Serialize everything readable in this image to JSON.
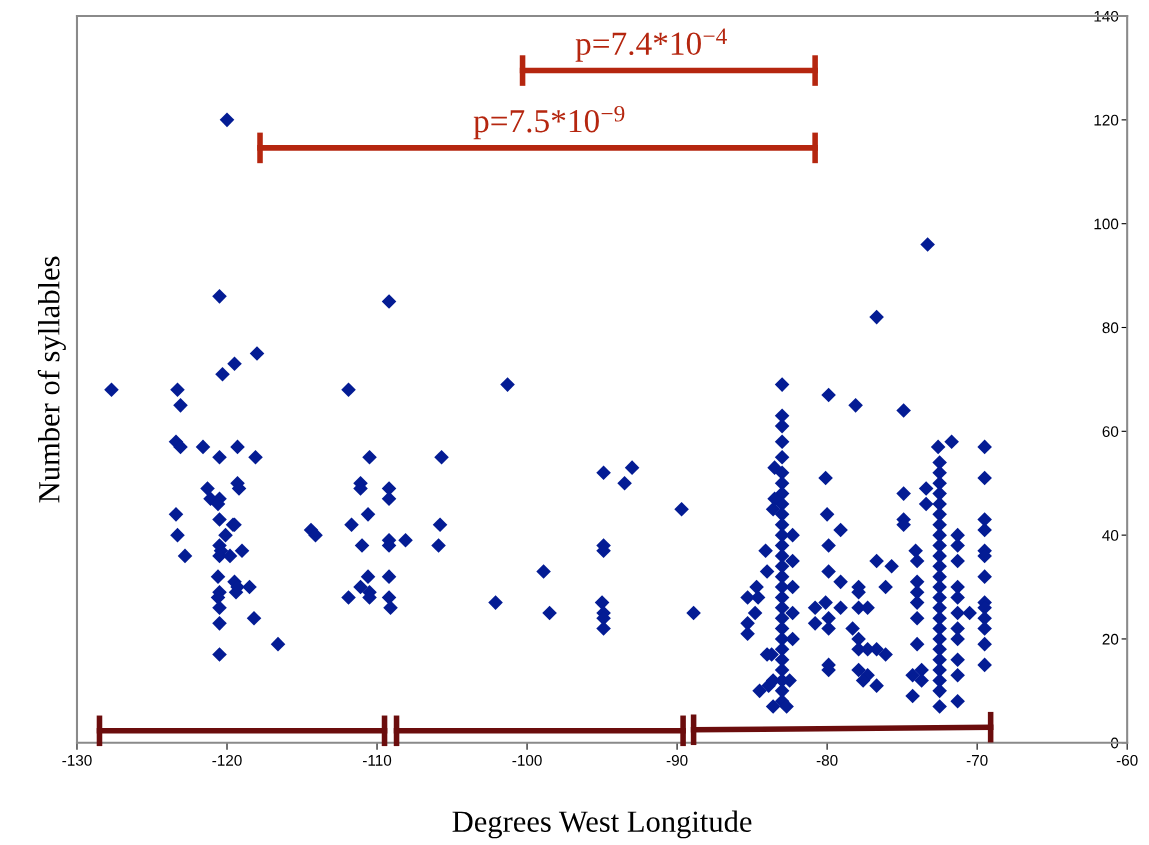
{
  "chart_data": {
    "type": "scatter",
    "xlabel": "Degrees West Longitude",
    "ylabel": "Number of syllables",
    "xlim": [
      -130,
      -60
    ],
    "xticks": [
      -130,
      -120,
      -110,
      -100,
      -90,
      -80,
      -70,
      -60
    ],
    "ylim": [
      0,
      140
    ],
    "yticks": [
      0,
      20,
      40,
      60,
      80,
      100,
      120,
      140
    ],
    "grid": false,
    "marker": "diamond",
    "annotations": [
      {
        "text": "p=7.4*10$^{−4}$",
        "x": -91.7,
        "y": 129.5
      },
      {
        "text": "p=7.5*10$^{−9}$",
        "x": -98.5,
        "y": 114.6
      }
    ],
    "series": [
      {
        "type": "line",
        "marker": "none",
        "color": "#b5260f",
        "x": [
          -100.3,
          -80.8
        ],
        "values": [
          129.5,
          129.5
        ]
      },
      {
        "type": "line",
        "marker": "none",
        "color": "#b5260f",
        "x": [
          -117.8,
          -80.8
        ],
        "values": [
          114.6,
          114.6
        ]
      },
      {
        "type": "line",
        "marker": "none",
        "color": "#6b0d0d",
        "x": [
          -128.5,
          -109.5
        ],
        "values": [
          2.3,
          2.3
        ]
      },
      {
        "type": "line",
        "marker": "none",
        "color": "#6b0d0d",
        "x": [
          -108.7,
          -89.6
        ],
        "values": [
          2.3,
          2.3
        ]
      },
      {
        "type": "line",
        "marker": "none",
        "color": "#6b0d0d",
        "x": [
          -88.9,
          -69.1
        ],
        "values": [
          2.5,
          3.0
        ]
      },
      {
        "color": "#041c94",
        "x": [
          -127.7,
          -123.3,
          -123.1,
          -123.4,
          -123.1,
          -121.6,
          -123.4,
          -123.3,
          -122.8,
          -121.3,
          -121.1,
          -120.5,
          -120.5,
          -120.5,
          -120.6,
          -120.5,
          -120.4,
          -120.5,
          -120.6,
          -120.5,
          -120.6,
          -120.5,
          -120.5,
          -120.5,
          -120.5,
          -120.3,
          -120.0,
          -119.5,
          -118.0,
          -118.1,
          -119.3,
          -119.3,
          -119.2,
          -119.6,
          -119.5,
          -119.0,
          -119.5,
          -119.3,
          -118.5,
          -119.4,
          -118.2,
          -116.6,
          -120.1,
          -119.8,
          -114.4,
          -114.1,
          -111.9,
          -111.7,
          -111.9,
          -111.1,
          -111.1,
          -110.5,
          -110.6,
          -111.0,
          -111.1,
          -110.6,
          -110.5,
          -110.5,
          -109.2,
          -109.2,
          -109.2,
          -109.2,
          -109.2,
          -109.2,
          -109.2,
          -109.1,
          -108.1,
          -105.7,
          -105.8,
          -105.9,
          -101.3,
          -102.1,
          -98.9,
          -98.5,
          -94.9,
          -94.9,
          -94.9,
          -95.0,
          -94.9,
          -94.9,
          -94.9,
          -93.0,
          -93.5,
          -89.7,
          -88.9,
          -83.0,
          -83.0,
          -83.0,
          -83.0,
          -83.0,
          -83.0,
          -83.0,
          -83.0,
          -83.0,
          -83.0,
          -83.0,
          -83.0,
          -83.0,
          -83.0,
          -83.0,
          -83.0,
          -83.0,
          -83.0,
          -83.0,
          -83.0,
          -83.0,
          -83.0,
          -83.0,
          -83.0,
          -83.0,
          -83.0,
          -83.0,
          -83.0,
          -83.5,
          -83.5,
          -83.6,
          -84.1,
          -84.7,
          -84.6,
          -84.8,
          -85.3,
          -85.3,
          -85.3,
          -84.0,
          -84.0,
          -83.9,
          -83.7,
          -83.6,
          -83.6,
          -82.7,
          -82.5,
          -84.5,
          -82.3,
          -82.3,
          -82.3,
          -82.3,
          -82.3,
          -79.9,
          -80.1,
          -80.0,
          -79.9,
          -79.9,
          -80.1,
          -80.8,
          -80.8,
          -79.9,
          -79.9,
          -79.9,
          -79.9,
          -79.1,
          -79.1,
          -79.1,
          -78.1,
          -77.9,
          -77.9,
          -77.9,
          -77.3,
          -78.3,
          -77.9,
          -77.9,
          -77.3,
          -76.7,
          -76.1,
          -77.9,
          -77.3,
          -76.7,
          -77.6,
          -76.7,
          -76.1,
          -75.7,
          -74.9,
          -74.9,
          -74.9,
          -74.9,
          -74.1,
          -74.0,
          -74.0,
          -74.0,
          -74.0,
          -74.0,
          -74.0,
          -74.3,
          -74.3,
          -73.7,
          -73.7,
          -73.4,
          -73.4,
          -73.3,
          -72.6,
          -72.5,
          -72.5,
          -72.5,
          -72.5,
          -72.5,
          -72.5,
          -72.5,
          -72.5,
          -72.5,
          -72.5,
          -72.5,
          -72.5,
          -72.5,
          -72.5,
          -72.5,
          -72.5,
          -72.5,
          -72.5,
          -72.5,
          -72.5,
          -72.5,
          -72.5,
          -72.5,
          -72.5,
          -71.7,
          -71.3,
          -71.3,
          -71.3,
          -71.3,
          -71.3,
          -71.3,
          -71.3,
          -71.3,
          -71.3,
          -71.3,
          -71.3,
          -70.5,
          -69.5,
          -69.5,
          -69.5,
          -69.5,
          -69.5,
          -69.5,
          -69.5,
          -69.5,
          -69.5,
          -69.5,
          -69.5,
          -69.5,
          -69.5,
          -76.7
        ],
        "values": [
          68,
          68,
          65,
          58,
          57,
          57,
          44,
          40,
          36,
          49,
          47,
          86,
          55,
          47,
          46,
          38,
          37,
          36,
          32,
          29,
          28,
          26,
          23,
          17,
          43,
          71,
          120,
          73,
          75,
          55,
          57,
          50,
          49,
          42,
          42,
          37,
          31,
          30,
          30,
          29,
          24,
          19,
          40,
          36,
          41,
          40,
          68,
          42,
          28,
          50,
          49,
          55,
          44,
          38,
          30,
          32,
          29,
          28,
          85,
          49,
          47,
          39,
          38,
          32,
          28,
          26,
          39,
          55,
          42,
          38,
          69,
          27,
          33,
          25,
          52,
          38,
          37,
          27,
          25,
          24,
          22,
          53,
          50,
          45,
          25,
          69,
          63,
          61,
          58,
          55,
          52,
          50,
          48,
          46,
          44,
          42,
          40,
          38,
          36,
          34,
          32,
          30,
          28,
          26,
          24,
          22,
          20,
          18,
          16,
          14,
          12,
          10,
          8,
          53,
          47,
          45,
          37,
          30,
          28,
          25,
          23,
          21,
          28,
          33,
          17,
          11,
          17,
          12,
          7,
          7,
          12,
          10,
          40,
          35,
          30,
          25,
          20,
          67,
          51,
          44,
          38,
          33,
          27,
          26,
          23,
          24,
          22,
          15,
          14,
          41,
          31,
          26,
          65,
          30,
          29,
          26,
          26,
          22,
          20,
          18,
          18,
          18,
          17,
          14,
          13,
          11,
          12,
          35,
          30,
          34,
          64,
          48,
          43,
          42,
          37,
          35,
          31,
          29,
          27,
          24,
          19,
          13,
          9,
          14,
          12,
          49,
          46,
          96,
          57,
          54,
          52,
          50,
          48,
          46,
          44,
          42,
          40,
          38,
          36,
          34,
          32,
          30,
          28,
          26,
          24,
          22,
          20,
          18,
          16,
          14,
          12,
          10,
          7,
          58,
          40,
          38,
          35,
          30,
          28,
          25,
          22,
          20,
          16,
          13,
          8,
          25,
          57,
          51,
          43,
          41,
          37,
          36,
          32,
          27,
          26,
          24,
          22,
          19,
          15,
          82
        ]
      }
    ]
  }
}
